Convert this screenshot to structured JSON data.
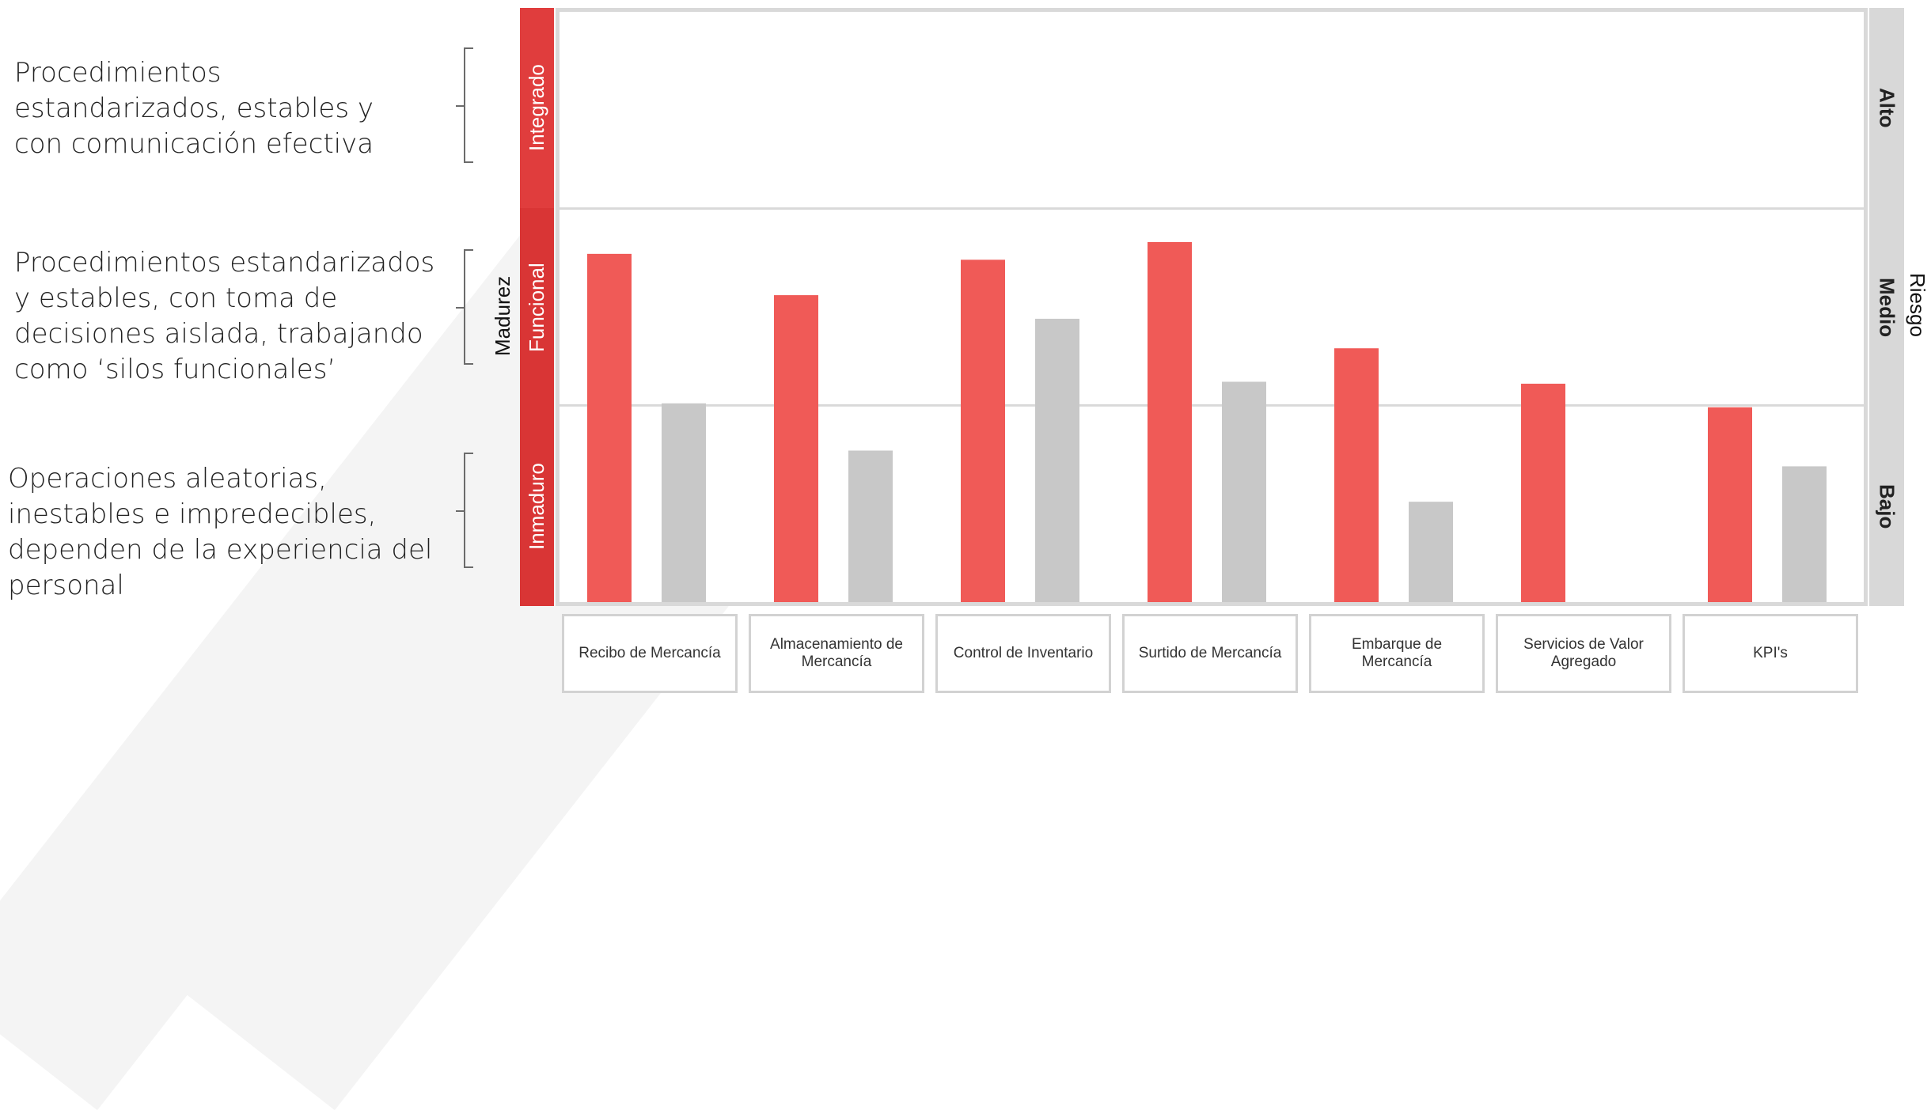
{
  "descriptions": {
    "integrado": "Procedimientos estandarizados, estables y con comunicación efectiva",
    "funcional": "Procedimientos estandarizados y estables, con toma de decisiones aislada, trabajando como ‘silos funcionales’",
    "inmaduro": "Operaciones aleatorias, inestables e impredecibles, dependen de la experiencia del personal"
  },
  "axis": {
    "left_title": "Madurez",
    "right_title": "Riesgo",
    "maturity_levels": [
      "Integrado",
      "Funcional",
      "Inmaduro"
    ],
    "risk_levels": [
      "Alto",
      "Medio",
      "Bajo"
    ]
  },
  "colors": {
    "maturity": "#f05a57",
    "risk": "#c8c8c8",
    "level_box": "#d93535",
    "risk_box": "#d8d8d8"
  },
  "chart_data": {
    "type": "bar",
    "categories": [
      "Recibo de Mercancía",
      "Almacenamiento de Mercancía",
      "Control de Inventario",
      "Surtido de Mercancía",
      "Embarque de Mercancía",
      "Servicios de Valor Agregado",
      "KPI's"
    ],
    "series": [
      {
        "values": [
          1.77,
          1.56,
          1.74,
          1.83,
          1.29,
          1.11,
          0.99
        ]
      },
      {
        "values": [
          1.01,
          0.77,
          1.44,
          1.12,
          0.51,
          0,
          0.69
        ]
      }
    ],
    "ylim": [
      0,
      3
    ],
    "grid": true
  }
}
